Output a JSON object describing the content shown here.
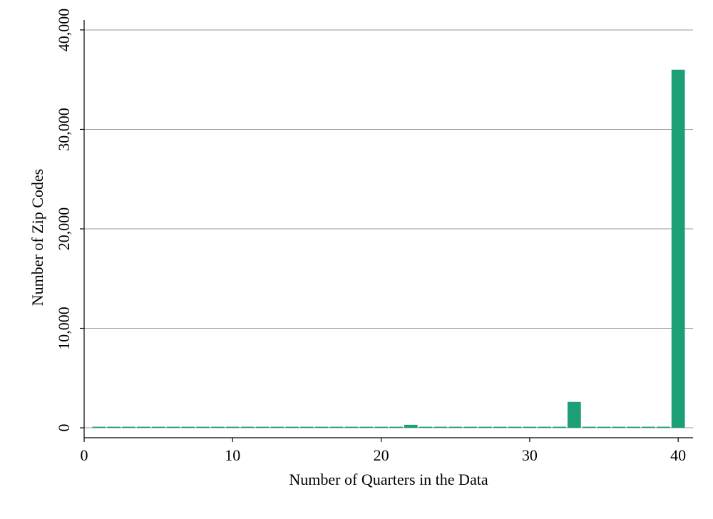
{
  "chart_data": {
    "type": "bar",
    "title": "",
    "xlabel": "Number of Quarters in the Data",
    "ylabel": "Number of Zip Codes",
    "xlim": [
      0,
      41
    ],
    "ylim": [
      -1000,
      41000
    ],
    "xticks": [
      0,
      10,
      20,
      30,
      40
    ],
    "xtick_labels": [
      "0",
      "10",
      "20",
      "30",
      "40"
    ],
    "yticks": [
      0,
      10000,
      20000,
      30000,
      40000
    ],
    "ytick_labels": [
      "0",
      "10,000",
      "20,000",
      "30,000",
      "40,000"
    ],
    "grid": "horizontal",
    "legend": "none",
    "bar_color": "#1c9e77",
    "x": [
      1,
      2,
      3,
      4,
      5,
      6,
      7,
      8,
      9,
      10,
      11,
      12,
      13,
      14,
      15,
      16,
      17,
      18,
      19,
      20,
      21,
      22,
      23,
      24,
      25,
      26,
      27,
      28,
      29,
      30,
      31,
      32,
      33,
      34,
      35,
      36,
      37,
      38,
      39,
      40
    ],
    "values": [
      20,
      20,
      20,
      20,
      20,
      20,
      20,
      20,
      20,
      20,
      20,
      20,
      20,
      20,
      20,
      20,
      20,
      20,
      20,
      20,
      30,
      300,
      80,
      40,
      30,
      30,
      30,
      30,
      30,
      40,
      50,
      60,
      2600,
      30,
      30,
      30,
      40,
      40,
      40,
      36000
    ]
  }
}
